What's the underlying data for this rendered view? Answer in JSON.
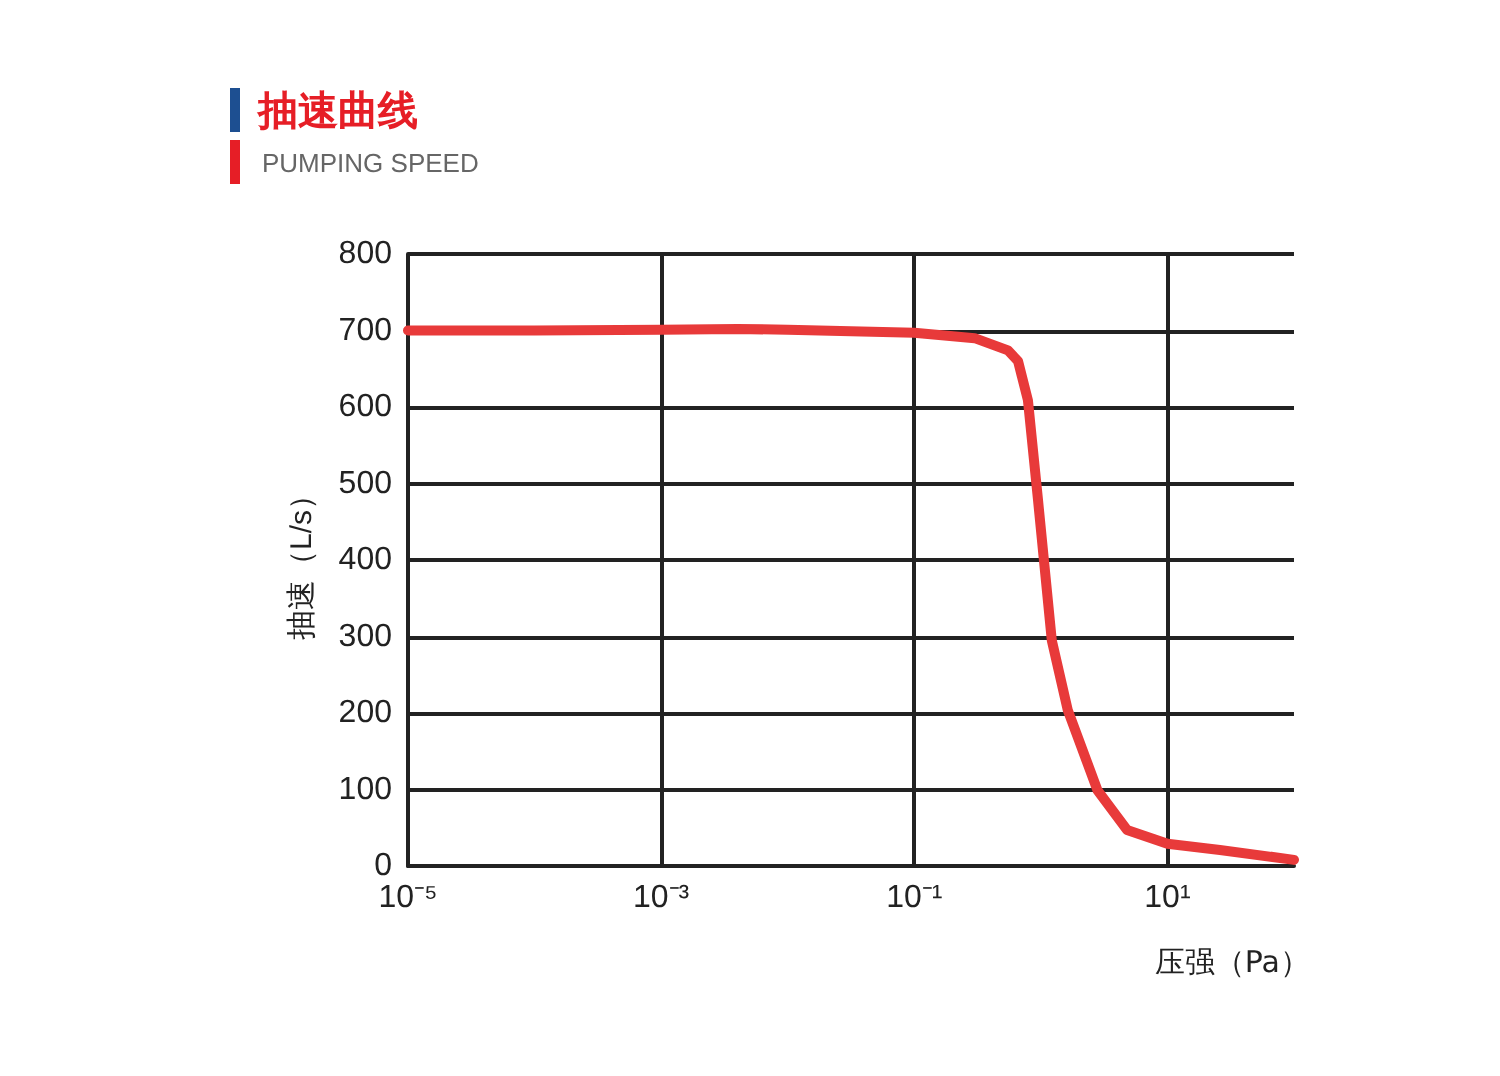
{
  "chart_data": {
    "type": "line",
    "title": "抽速曲线",
    "subtitle": "PUMPING SPEED",
    "xlabel": "压强（Pa）",
    "ylabel": "抽速（L/s）",
    "x": [
      1e-05,
      0.0001,
      0.001,
      0.004,
      0.01,
      0.1,
      0.3,
      0.55,
      0.66,
      0.79,
      0.95,
      1.22,
      1.63,
      2.8,
      4.8,
      10,
      26,
      100
    ],
    "series": [
      {
        "color": "#e83a3a",
        "values": [
          700,
          700,
          701,
          702,
          701,
          697,
          690,
          674,
          660,
          609,
          478,
          295,
          204,
          99,
          47,
          29,
          21,
          8
        ]
      }
    ],
    "log": "x",
    "xlim": [
      1e-05,
      100
    ],
    "xticks": [
      {
        "value": 1e-05,
        "label": "10⁻⁵"
      },
      {
        "value": 0.001,
        "label": "10⁻³"
      },
      {
        "value": 0.1,
        "label": "10⁻¹"
      },
      {
        "value": 10,
        "label": "10¹"
      }
    ],
    "ylim": [
      0,
      800
    ],
    "yticks": [
      0,
      100,
      200,
      300,
      400,
      500,
      600,
      700,
      800
    ],
    "grid": true,
    "marker": "none",
    "line_style": "solid"
  }
}
